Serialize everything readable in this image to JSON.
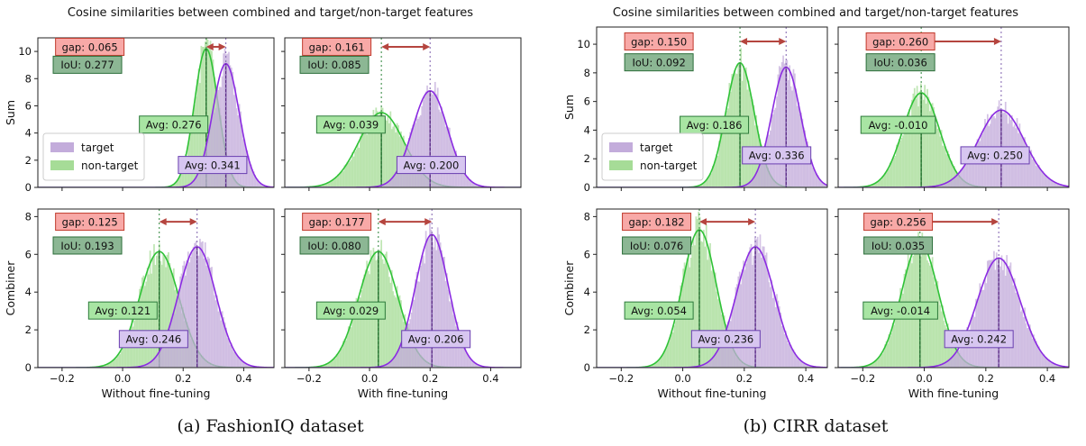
{
  "captions": [
    "(a) FashionIQ dataset",
    "(b) CIRR dataset"
  ],
  "colors": {
    "target_fill": "#c3acdb",
    "target_line": "#8b2be2",
    "nontarget_fill": "#a6dc97",
    "nontarget_line": "#2fc237",
    "gap_box": "#f8a9a7",
    "gap_edge": "#c0392b",
    "arrow": "#b5453f",
    "iou_box": "#8cb794",
    "iou_edge": "#2c6e3a"
  },
  "chart_data": [
    {
      "type": "area",
      "dataset": "FashionIQ",
      "title": "Cosine similarities between combined and target/non-target features",
      "legend": {
        "entries": [
          "target",
          "non-target"
        ],
        "placement": "lower-left of top-left panel"
      },
      "xlim": [
        -0.28,
        0.5
      ],
      "xticks": [
        -0.2,
        0.0,
        0.2,
        0.4
      ],
      "xtick_labels": [
        "−0.2",
        "0.0",
        "0.2",
        "0.4"
      ],
      "panels": [
        {
          "row_label": "Sum",
          "xlabel": "",
          "ylim": [
            0,
            11
          ],
          "yticks": [
            0,
            2,
            4,
            6,
            8,
            10
          ],
          "target": {
            "mean": 0.341,
            "std": 0.044,
            "peak": 9.1
          },
          "nontarget": {
            "mean": 0.276,
            "std": 0.039,
            "peak": 10.2
          },
          "avg_target": "Avg: 0.341",
          "avg_nontarget": "Avg: 0.276",
          "gap": "gap: 0.065",
          "iou": "IoU: 0.277"
        },
        {
          "row_label": "",
          "xlabel": "",
          "ylim": [
            0,
            11
          ],
          "yticks": [],
          "target": {
            "mean": 0.2,
            "std": 0.058,
            "peak": 7.1
          },
          "nontarget": {
            "mean": 0.039,
            "std": 0.075,
            "peak": 5.5
          },
          "avg_target": "Avg: 0.200",
          "avg_nontarget": "Avg: 0.039",
          "gap": "gap: 0.161",
          "iou": "IoU: 0.085"
        },
        {
          "row_label": "Combiner",
          "xlabel": "Without fine-tuning",
          "ylim": [
            0,
            8.4
          ],
          "yticks": [
            0,
            2,
            4,
            6,
            8
          ],
          "target": {
            "mean": 0.246,
            "std": 0.062,
            "peak": 6.4
          },
          "nontarget": {
            "mean": 0.121,
            "std": 0.065,
            "peak": 6.15
          },
          "avg_target": "Avg: 0.246",
          "avg_nontarget": "Avg: 0.121",
          "gap": "gap: 0.125",
          "iou": "IoU: 0.193"
        },
        {
          "row_label": "",
          "xlabel": "With fine-tuning",
          "ylim": [
            0,
            8.4
          ],
          "yticks": [],
          "target": {
            "mean": 0.206,
            "std": 0.055,
            "peak": 7.05
          },
          "nontarget": {
            "mean": 0.029,
            "std": 0.065,
            "peak": 6.15
          },
          "avg_target": "Avg: 0.206",
          "avg_nontarget": "Avg: 0.029",
          "gap": "gap: 0.177",
          "iou": "IoU: 0.080"
        }
      ]
    },
    {
      "type": "area",
      "dataset": "CIRR",
      "title": "Cosine similarities between combined and target/non-target features",
      "legend": {
        "entries": [
          "target",
          "non-target"
        ],
        "placement": "lower-left of top-left panel"
      },
      "xlim": [
        -0.28,
        0.47
      ],
      "xticks": [
        -0.2,
        0.0,
        0.2,
        0.4
      ],
      "xtick_labels": [
        "−0.2",
        "0.0",
        "0.2",
        "0.4"
      ],
      "panels": [
        {
          "row_label": "Sum",
          "xlabel": "",
          "ylim": [
            0,
            11.2
          ],
          "yticks": [
            0,
            2,
            4,
            6,
            8,
            10
          ],
          "target": {
            "mean": 0.336,
            "std": 0.047,
            "peak": 8.4
          },
          "nontarget": {
            "mean": 0.186,
            "std": 0.046,
            "peak": 8.7
          },
          "avg_target": "Avg: 0.336",
          "avg_nontarget": "Avg: 0.186",
          "gap": "gap: 0.150",
          "iou": "IoU: 0.092"
        },
        {
          "row_label": "",
          "xlabel": "",
          "ylim": [
            0,
            11.2
          ],
          "yticks": [],
          "target": {
            "mean": 0.25,
            "std": 0.075,
            "peak": 5.4
          },
          "nontarget": {
            "mean": -0.01,
            "std": 0.06,
            "peak": 6.6
          },
          "avg_target": "Avg: 0.250",
          "avg_nontarget": "Avg: -0.010",
          "gap": "gap: 0.260",
          "iou": "IoU: 0.036"
        },
        {
          "row_label": "Combiner",
          "xlabel": "Without fine-tuning",
          "ylim": [
            0,
            8.4
          ],
          "yticks": [
            0,
            2,
            4,
            6,
            8
          ],
          "target": {
            "mean": 0.236,
            "std": 0.062,
            "peak": 6.4
          },
          "nontarget": {
            "mean": 0.054,
            "std": 0.055,
            "peak": 7.3
          },
          "avg_target": "Avg: 0.236",
          "avg_nontarget": "Avg: 0.054",
          "gap": "gap: 0.182",
          "iou": "IoU: 0.076"
        },
        {
          "row_label": "",
          "xlabel": "With fine-tuning",
          "ylim": [
            0,
            8.4
          ],
          "yticks": [],
          "target": {
            "mean": 0.242,
            "std": 0.07,
            "peak": 5.8
          },
          "nontarget": {
            "mean": -0.014,
            "std": 0.06,
            "peak": 6.6
          },
          "avg_target": "Avg: 0.242",
          "avg_nontarget": "Avg: -0.014",
          "gap": "gap: 0.256",
          "iou": "IoU: 0.035"
        }
      ]
    }
  ]
}
